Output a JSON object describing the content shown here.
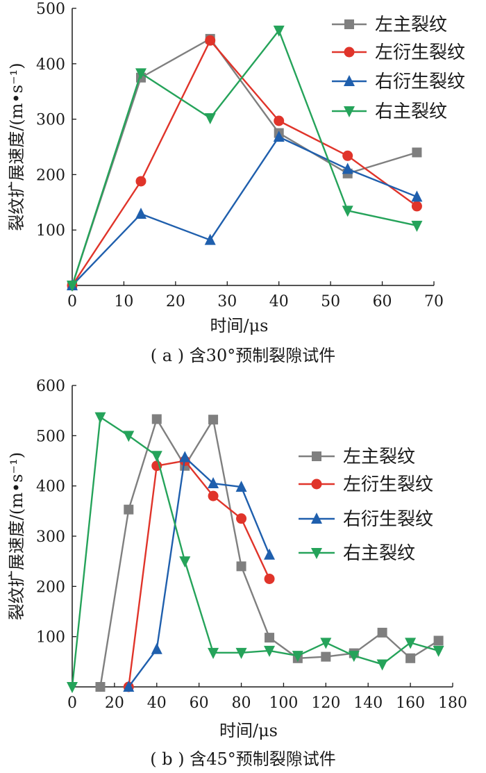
{
  "chart_data": [
    {
      "type": "line",
      "caption": "( a ) 含30°预制裂隙试件",
      "xlabel": "时间/μs",
      "ylabel": "裂纹扩展速度/(m•s⁻¹)",
      "xlim": [
        0,
        70
      ],
      "ylim": [
        0,
        500
      ],
      "xticks": [
        0,
        10,
        20,
        30,
        40,
        50,
        60,
        70
      ],
      "yticks": [
        100,
        200,
        300,
        400,
        500
      ],
      "grid": false,
      "legend_position": "top-right",
      "series": [
        {
          "name": "左主裂纹",
          "color": "#7f7f7f",
          "marker": "square",
          "x": [
            0,
            13.3,
            26.7,
            40,
            53.3,
            66.7
          ],
          "y": [
            0,
            375,
            445,
            275,
            202,
            240
          ]
        },
        {
          "name": "左衍生裂纹",
          "color": "#e0342a",
          "marker": "circle",
          "x": [
            0,
            13.3,
            26.7,
            40,
            53.3,
            66.7
          ],
          "y": [
            0,
            188,
            442,
            297,
            234,
            143
          ]
        },
        {
          "name": "右衍生裂纹",
          "color": "#1f5fad",
          "marker": "triangle-up",
          "x": [
            0,
            13.3,
            26.7,
            40,
            53.3,
            66.7
          ],
          "y": [
            0,
            129,
            82,
            268,
            210,
            160
          ]
        },
        {
          "name": "右主裂纹",
          "color": "#25a35a",
          "marker": "triangle-down",
          "x": [
            0,
            13.3,
            26.7,
            40,
            53.3,
            66.7
          ],
          "y": [
            0,
            383,
            302,
            460,
            135,
            108
          ]
        }
      ]
    },
    {
      "type": "line",
      "caption": "( b ) 含45°预制裂隙试件",
      "xlabel": "时间/μs",
      "ylabel": "裂纹扩展速度/(m•s⁻¹)",
      "xlim": [
        0,
        180
      ],
      "ylim": [
        0,
        600
      ],
      "xticks": [
        0,
        20,
        40,
        60,
        80,
        100,
        120,
        140,
        160,
        180
      ],
      "yticks": [
        100,
        200,
        300,
        400,
        500,
        600
      ],
      "grid": false,
      "legend_position": "center-right",
      "series": [
        {
          "name": "左主裂纹",
          "color": "#7f7f7f",
          "marker": "square",
          "x": [
            13.3,
            26.7,
            40,
            53.3,
            66.7,
            80,
            93.3,
            106.7,
            120,
            133.3,
            146.7,
            160,
            173.3
          ],
          "y": [
            0,
            353,
            533,
            440,
            532,
            240,
            98,
            57,
            60,
            67,
            108,
            57,
            92
          ]
        },
        {
          "name": "左衍生裂纹",
          "color": "#e0342a",
          "marker": "circle",
          "x": [
            26.7,
            40,
            53.3,
            66.7,
            80,
            93.3
          ],
          "y": [
            0,
            440,
            450,
            380,
            335,
            215
          ]
        },
        {
          "name": "右衍生裂纹",
          "color": "#1f5fad",
          "marker": "triangle-up",
          "x": [
            26.7,
            40,
            53.3,
            66.7,
            80,
            93.3
          ],
          "y": [
            0,
            75,
            457,
            405,
            398,
            263
          ]
        },
        {
          "name": "右主裂纹",
          "color": "#25a35a",
          "marker": "triangle-down",
          "x": [
            0,
            13.3,
            26.7,
            40,
            53.3,
            66.7,
            80,
            93.3,
            106.7,
            120,
            133.3,
            146.7,
            160,
            173.3
          ],
          "y": [
            0,
            537,
            500,
            460,
            250,
            68,
            68,
            72,
            62,
            88,
            62,
            45,
            88,
            72
          ]
        }
      ]
    }
  ]
}
